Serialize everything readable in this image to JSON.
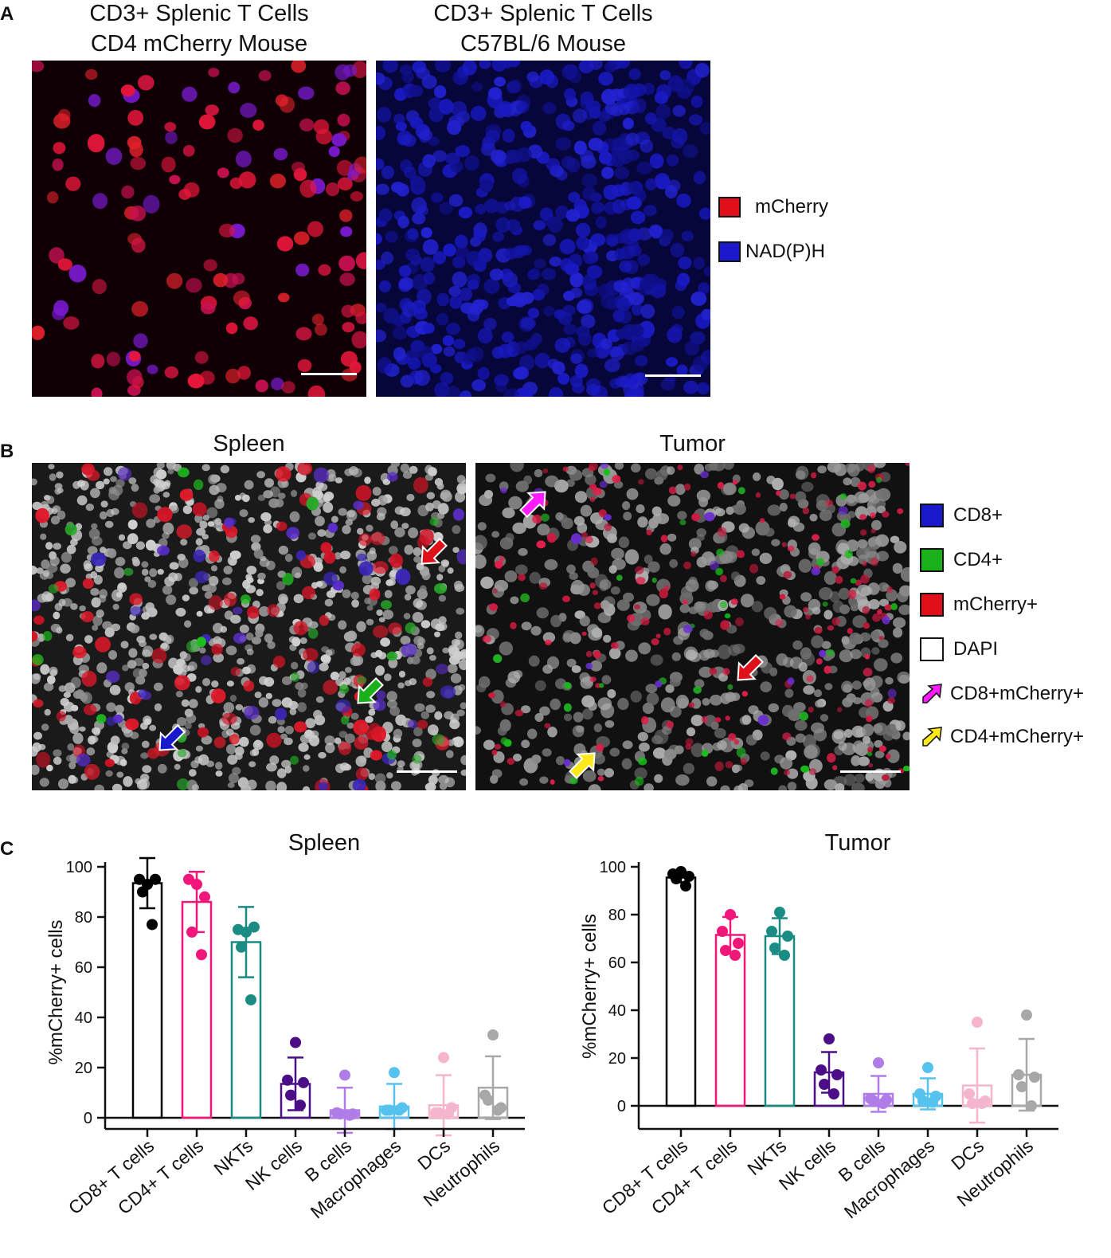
{
  "panel_a": {
    "letter": "A",
    "image_titles": [
      [
        "CD3+ Splenic T Cells",
        "CD4 mCherry Mouse"
      ],
      [
        "CD3+ Splenic T Cells",
        "C57BL/6 Mouse"
      ]
    ],
    "legend": [
      {
        "label": "mCherry",
        "color": "#e0101a"
      },
      {
        "label": "NAD(P)H",
        "color": "#1a1acc"
      }
    ]
  },
  "panel_b": {
    "letter": "B",
    "image_titles": [
      "Spleen",
      "Tumor"
    ],
    "legend": [
      {
        "label": "CD8+",
        "color": "#1a1acc",
        "kind": "box"
      },
      {
        "label": "CD4+",
        "color": "#19b019",
        "kind": "box"
      },
      {
        "label": "mCherry+",
        "color": "#e0101a",
        "kind": "box"
      },
      {
        "label": "DAPI",
        "color": "#ffffff",
        "kind": "box"
      },
      {
        "label": "CD8+mCherry+",
        "color": "#ff1aff",
        "kind": "arrow"
      },
      {
        "label": "CD4+mCherry+",
        "color": "#ffe81a",
        "kind": "arrow"
      }
    ]
  },
  "panel_c": {
    "letter": "C"
  },
  "chart_data": [
    {
      "type": "bar",
      "title": "Spleen",
      "ylabel": "%mCherry+ cells",
      "ylim": [
        -5,
        100
      ],
      "yticks": [
        0,
        20,
        40,
        60,
        80,
        100
      ],
      "categories": [
        "CD8+ T cells",
        "CD4+ T cells",
        "NKTs",
        "NK cells",
        "B cells",
        "Macrophages",
        "DCs",
        "Neutrophils"
      ],
      "colors": [
        "#000000",
        "#f0167a",
        "#1a8c84",
        "#4b0e86",
        "#b07de8",
        "#56c3ee",
        "#f5b5cc",
        "#a8a8a8"
      ],
      "values": [
        93.5,
        86,
        70,
        13.5,
        3,
        4.5,
        5,
        12
      ],
      "error": [
        10,
        12,
        14,
        10.5,
        9,
        9,
        12,
        12.5
      ],
      "points": [
        [
          93,
          95,
          95,
          90,
          77
        ],
        [
          93,
          95,
          88,
          74,
          65
        ],
        [
          74,
          75,
          76,
          68,
          47
        ],
        [
          30,
          15,
          14,
          9,
          5
        ],
        [
          17,
          2,
          1.5,
          1.5,
          1
        ],
        [
          18,
          3,
          4,
          3,
          3
        ],
        [
          24,
          2,
          4,
          2,
          1.5
        ],
        [
          33,
          9,
          4,
          7,
          3
        ]
      ]
    },
    {
      "type": "bar",
      "title": "Tumor",
      "ylabel": "%mCherry+ cells",
      "ylim": [
        -10,
        100
      ],
      "yticks": [
        0,
        20,
        40,
        60,
        80,
        100
      ],
      "categories": [
        "CD8+ T cells",
        "CD4+ T cells",
        "NKTs",
        "NK cells",
        "B cells",
        "Macrophages",
        "DCs",
        "Neutrophils"
      ],
      "colors": [
        "#000000",
        "#f0167a",
        "#1a8c84",
        "#4b0e86",
        "#b07de8",
        "#56c3ee",
        "#f5b5cc",
        "#a8a8a8"
      ],
      "values": [
        95.5,
        71.5,
        71,
        14,
        5,
        5,
        8.5,
        13
      ],
      "error": [
        2,
        7.5,
        7.5,
        8.5,
        7.5,
        6.5,
        15.5,
        15
      ],
      "points": [
        [
          98,
          97,
          96,
          95,
          92
        ],
        [
          80,
          73,
          68,
          65,
          63
        ],
        [
          81,
          73,
          71,
          66,
          63
        ],
        [
          28,
          15,
          13,
          9,
          5
        ],
        [
          18,
          3,
          2.5,
          2,
          1
        ],
        [
          16,
          5,
          4,
          2,
          1.5
        ],
        [
          35,
          5,
          2,
          1,
          1
        ],
        [
          38,
          13,
          12,
          8,
          0
        ]
      ]
    }
  ]
}
